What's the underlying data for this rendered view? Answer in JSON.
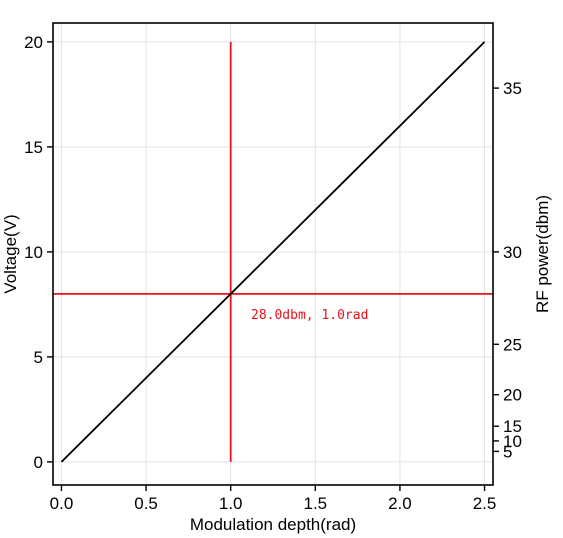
{
  "chart_data": {
    "type": "line",
    "xlabel": "Modulation depth(rad)",
    "ylabel": "Voltage(V)",
    "y2label": "RF power(dbm)",
    "xlim": [
      -0.05,
      2.55
    ],
    "ylim": [
      -1.1,
      20.9
    ],
    "x_ticks": [
      0.0,
      0.5,
      1.0,
      1.5,
      2.0,
      2.5
    ],
    "x_tick_labels": [
      "0.0",
      "0.5",
      "1.0",
      "1.5",
      "2.0",
      "2.5"
    ],
    "y_ticks": [
      0,
      5,
      10,
      15,
      20
    ],
    "y_tick_labels": [
      "0",
      "5",
      "10",
      "15",
      "20"
    ],
    "y2_ticks": [
      {
        "label": "5",
        "voltage": 0.5
      },
      {
        "label": "10",
        "voltage": 1.0
      },
      {
        "label": "15",
        "voltage": 1.7
      },
      {
        "label": "20",
        "voltage": 3.2
      },
      {
        "label": "25",
        "voltage": 5.6
      },
      {
        "label": "30",
        "voltage": 10.0
      },
      {
        "label": "35",
        "voltage": 17.8
      }
    ],
    "grid": true,
    "series": [
      {
        "x": [
          0,
          2.5
        ],
        "y": [
          0,
          20
        ],
        "color": "#000000"
      }
    ],
    "crosshair": {
      "x": 1.0,
      "y": 8.0,
      "color": "#e8121b",
      "vertical_y_range": [
        0,
        20
      ],
      "horizontal_x_range": [
        -0.05,
        2.55
      ]
    },
    "annotation": {
      "text": "28.0dbm, 1.0rad",
      "x": 1.12,
      "y": 7.0,
      "color": "#e8121b"
    }
  }
}
